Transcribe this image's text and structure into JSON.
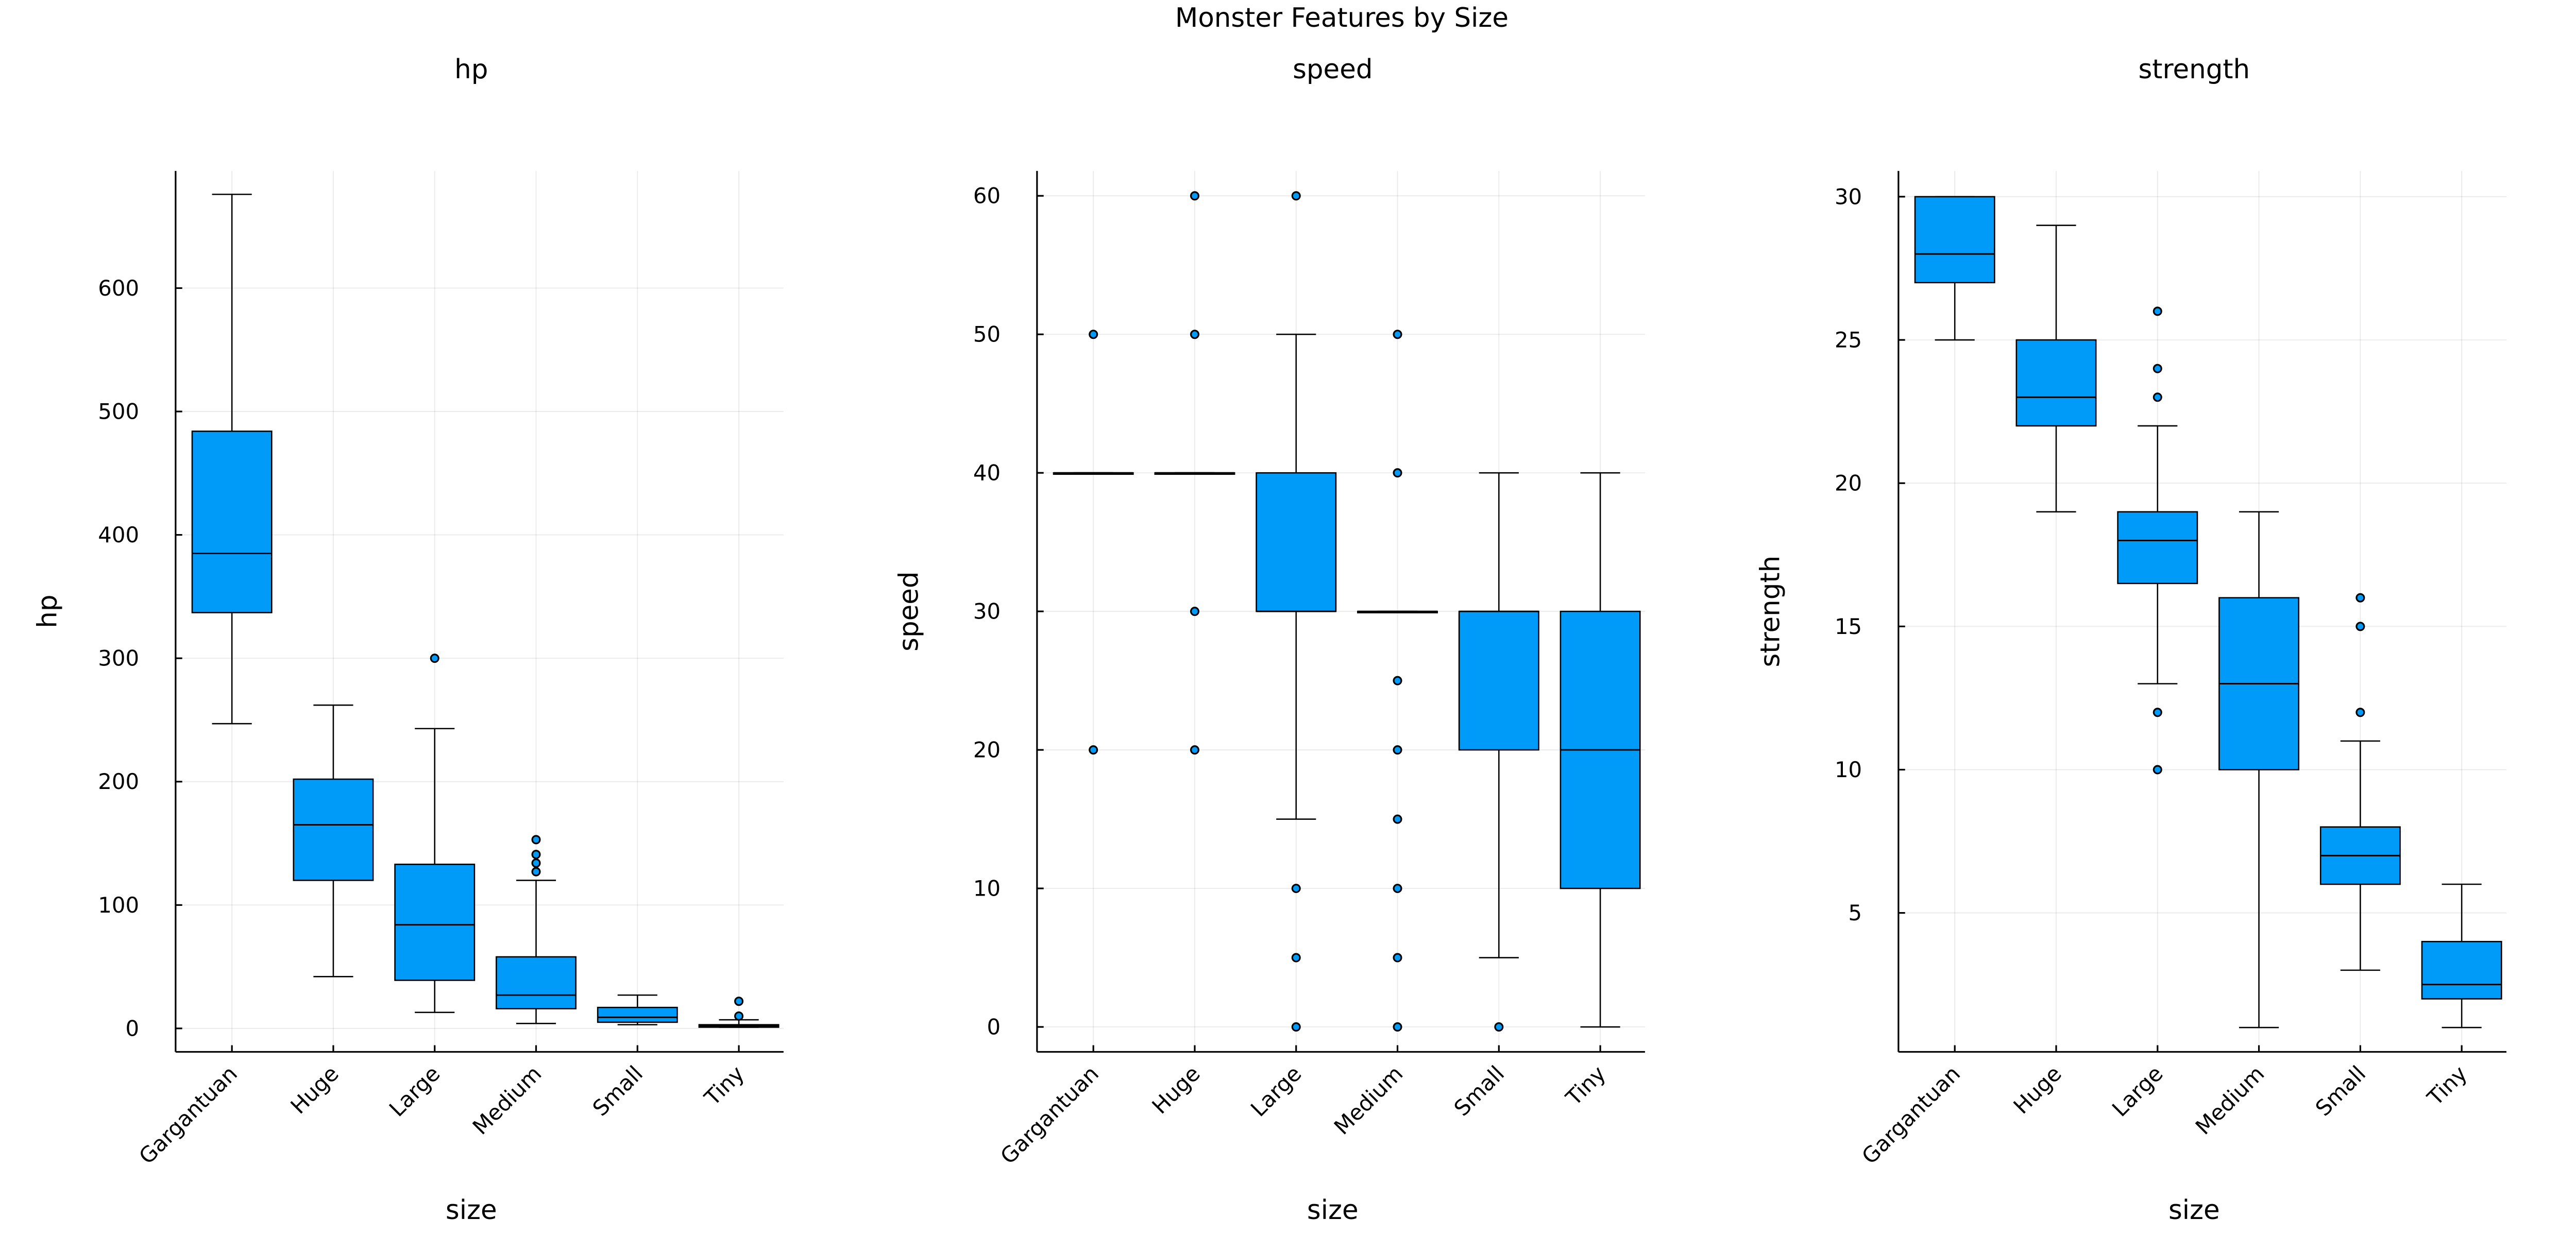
{
  "chart_data": {
    "type": "box",
    "title": "Monster Features by Size",
    "color": "#009af9",
    "categories": [
      "Gargantuan",
      "Huge",
      "Large",
      "Medium",
      "Small",
      "Tiny"
    ],
    "panels": [
      {
        "title": "hp",
        "xlabel": "size",
        "ylabel": "hp",
        "ylim": [
          -19,
          695
        ],
        "yticks": [
          0,
          100,
          200,
          300,
          400,
          500,
          600
        ],
        "grid": true,
        "boxes": [
          {
            "low": 247,
            "q1": 337,
            "median": 385,
            "q3": 484,
            "high": 676,
            "outliers": []
          },
          {
            "low": 42,
            "q1": 120,
            "median": 165,
            "q3": 202,
            "high": 262,
            "outliers": []
          },
          {
            "low": 13,
            "q1": 39,
            "median": 84,
            "q3": 133,
            "high": 243,
            "outliers": [
              300
            ]
          },
          {
            "low": 4,
            "q1": 16,
            "median": 27,
            "q3": 58,
            "high": 120,
            "outliers": [
              127,
              134,
              141,
              153
            ]
          },
          {
            "low": 3,
            "q1": 5,
            "median": 9,
            "q3": 17,
            "high": 27,
            "outliers": []
          },
          {
            "low": 1,
            "q1": 1,
            "median": 2,
            "q3": 3,
            "high": 7,
            "outliers": [
              10,
              22
            ]
          }
        ]
      },
      {
        "title": "speed",
        "xlabel": "size",
        "ylabel": "speed",
        "ylim": [
          -1.8,
          61.8
        ],
        "yticks": [
          0,
          10,
          20,
          30,
          40,
          50,
          60
        ],
        "grid": true,
        "boxes": [
          {
            "low": 40,
            "q1": 40,
            "median": 40,
            "q3": 40,
            "high": 40,
            "outliers": [
              20,
              50
            ]
          },
          {
            "low": 40,
            "q1": 40,
            "median": 40,
            "q3": 40,
            "high": 40,
            "outliers": [
              20,
              30,
              50,
              60
            ]
          },
          {
            "low": 15,
            "q1": 30,
            "median": 30,
            "q3": 40,
            "high": 50,
            "outliers": [
              0,
              5,
              10,
              60
            ]
          },
          {
            "low": 30,
            "q1": 30,
            "median": 30,
            "q3": 30,
            "high": 30,
            "outliers": [
              0,
              5,
              10,
              15,
              20,
              25,
              40,
              50
            ]
          },
          {
            "low": 5,
            "q1": 20,
            "median": 30,
            "q3": 30,
            "high": 40,
            "outliers": [
              0
            ]
          },
          {
            "low": 0,
            "q1": 10,
            "median": 20,
            "q3": 30,
            "high": 40,
            "outliers": []
          }
        ]
      },
      {
        "title": "strength",
        "xlabel": "size",
        "ylabel": "strength",
        "ylim": [
          0.15,
          30.9
        ],
        "yticks": [
          5,
          10,
          15,
          20,
          25,
          30
        ],
        "grid": true,
        "boxes": [
          {
            "low": 25,
            "q1": 27,
            "median": 28,
            "q3": 30,
            "high": 30,
            "outliers": []
          },
          {
            "low": 19,
            "q1": 22,
            "median": 23,
            "q3": 25,
            "high": 29,
            "outliers": []
          },
          {
            "low": 13,
            "q1": 16.5,
            "median": 18,
            "q3": 19,
            "high": 22,
            "outliers": [
              10,
              12,
              23,
              24,
              26
            ]
          },
          {
            "low": 1,
            "q1": 10,
            "median": 13,
            "q3": 16,
            "high": 19,
            "outliers": []
          },
          {
            "low": 3,
            "q1": 6,
            "median": 7,
            "q3": 8,
            "high": 11,
            "outliers": [
              12,
              15,
              16
            ]
          },
          {
            "low": 1,
            "q1": 2,
            "median": 2.5,
            "q3": 4,
            "high": 6,
            "outliers": []
          }
        ]
      }
    ]
  }
}
